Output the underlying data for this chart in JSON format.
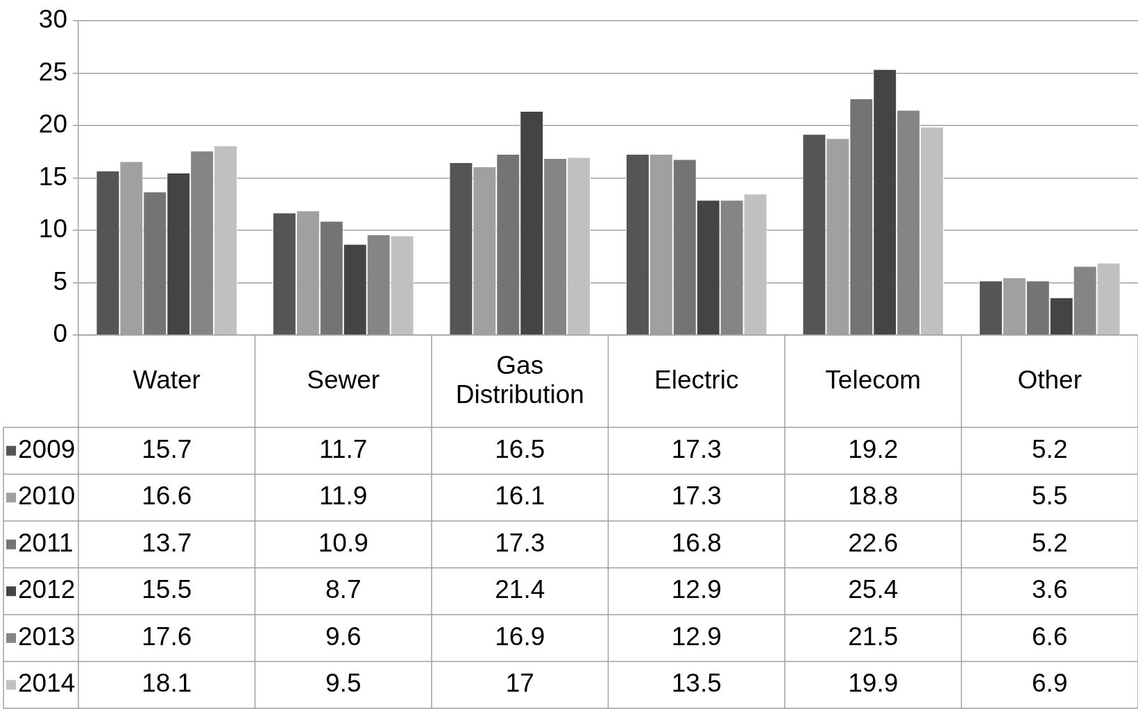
{
  "chart_data": {
    "type": "bar",
    "categories": [
      "Water",
      "Sewer",
      "Gas Distribution",
      "Electric",
      "Telecom",
      "Other"
    ],
    "series": [
      {
        "name": "2009",
        "color": "#555555",
        "values": [
          15.7,
          11.7,
          16.5,
          17.3,
          19.2,
          5.2
        ]
      },
      {
        "name": "2010",
        "color": "#a0a0a0",
        "values": [
          16.6,
          11.9,
          16.1,
          17.3,
          18.8,
          5.5
        ]
      },
      {
        "name": "2011",
        "color": "#747474",
        "values": [
          13.7,
          10.9,
          17.3,
          16.8,
          22.6,
          5.2
        ]
      },
      {
        "name": "2012",
        "color": "#444444",
        "values": [
          15.5,
          8.7,
          21.4,
          12.9,
          25.4,
          3.6
        ]
      },
      {
        "name": "2013",
        "color": "#858585",
        "values": [
          17.6,
          9.6,
          16.9,
          12.9,
          21.5,
          6.6
        ]
      },
      {
        "name": "2014",
        "color": "#c0c0c0",
        "values": [
          18.1,
          9.5,
          17,
          13.5,
          19.9,
          6.9
        ]
      }
    ],
    "ylim": [
      0,
      30
    ],
    "yticks": [
      0,
      5,
      10,
      15,
      20,
      25,
      30
    ],
    "grid": "y",
    "legend": "bottom left",
    "data_labels": true
  }
}
